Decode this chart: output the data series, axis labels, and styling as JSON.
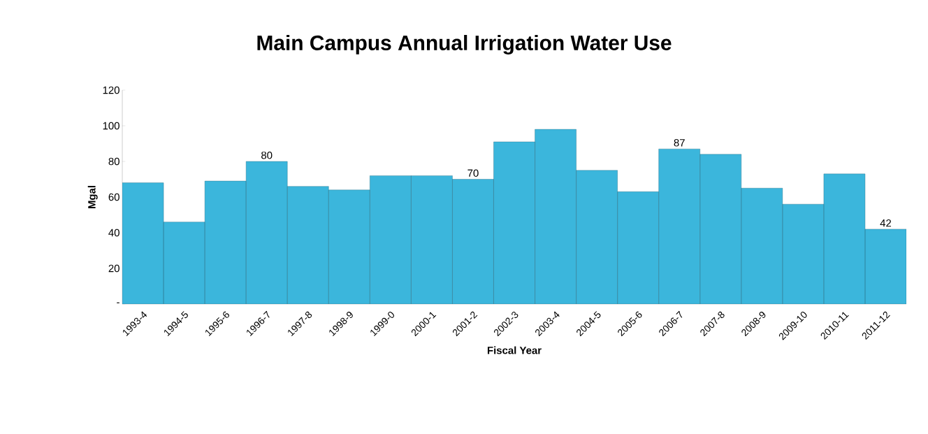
{
  "chart_data": {
    "type": "bar",
    "title": "Main Campus Annual Irrigation Water Use",
    "xlabel": "Fiscal Year",
    "ylabel": "Mgal",
    "categories": [
      "1993-4",
      "1994-5",
      "1995-6",
      "1996-7",
      "1997-8",
      "1998-9",
      "1999-0",
      "2000-1",
      "2001-2",
      "2002-3",
      "2003-4",
      "2004-5",
      "2005-6",
      "2006-7",
      "2007-8",
      "2008-9",
      "2009-10",
      "2010-11",
      "2011-12"
    ],
    "values": [
      68,
      46,
      69,
      80,
      66,
      64,
      72,
      72,
      70,
      91,
      98,
      75,
      63,
      87,
      84,
      65,
      56,
      73,
      42
    ],
    "value_labels": [
      null,
      null,
      null,
      "80",
      null,
      null,
      null,
      null,
      "70",
      null,
      null,
      null,
      null,
      "87",
      null,
      null,
      null,
      null,
      "42"
    ],
    "color": "#3bb6dc",
    "ylim": [
      0,
      120
    ],
    "yticks": [
      {
        "value": 0,
        "label": "-"
      },
      20,
      40,
      60,
      80,
      100,
      120
    ],
    "grid": false
  }
}
